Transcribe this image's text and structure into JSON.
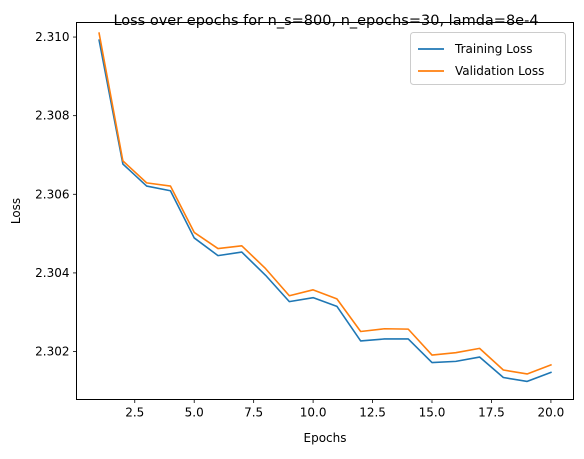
{
  "chart_data": {
    "type": "line",
    "title": "Loss over epochs for n_s=800, n_epochs=30, lamda=8e-4",
    "xlabel": "Epochs",
    "ylabel": "Loss",
    "xlim": [
      0.05,
      20.95
    ],
    "ylim": [
      2.30078,
      2.31037
    ],
    "grid": false,
    "legend_position": "top-right",
    "x_ticks": [
      2.5,
      5.0,
      7.5,
      10.0,
      12.5,
      15.0,
      17.5,
      20.0
    ],
    "x_tick_labels": [
      "2.5",
      "5.0",
      "7.5",
      "10.0",
      "12.5",
      "15.0",
      "17.5",
      "20.0"
    ],
    "y_ticks": [
      2.302,
      2.304,
      2.306,
      2.308,
      2.31
    ],
    "y_tick_labels": [
      "2.302",
      "2.304",
      "2.306",
      "2.308",
      "2.310"
    ],
    "x": [
      1,
      2,
      3,
      4,
      5,
      6,
      7,
      8,
      9,
      10,
      11,
      12,
      13,
      14,
      15,
      16,
      17,
      18,
      19,
      20
    ],
    "series": [
      {
        "name": "Training Loss",
        "color": "#1f77b4",
        "values": [
          2.30992,
          2.30677,
          2.30621,
          2.30609,
          2.30489,
          2.30444,
          2.30453,
          2.30394,
          2.30327,
          2.30337,
          2.30315,
          2.30227,
          2.30232,
          2.30232,
          2.30172,
          2.30175,
          2.30186,
          2.30134,
          2.30124,
          2.30147
        ]
      },
      {
        "name": "Validation Loss",
        "color": "#ff7f0e",
        "values": [
          2.3101,
          2.30685,
          2.30629,
          2.30621,
          2.30503,
          2.30462,
          2.30469,
          2.30411,
          2.30342,
          2.30357,
          2.30334,
          2.30251,
          2.30258,
          2.30257,
          2.30191,
          2.30197,
          2.30208,
          2.30153,
          2.30143,
          2.30166
        ]
      }
    ]
  }
}
